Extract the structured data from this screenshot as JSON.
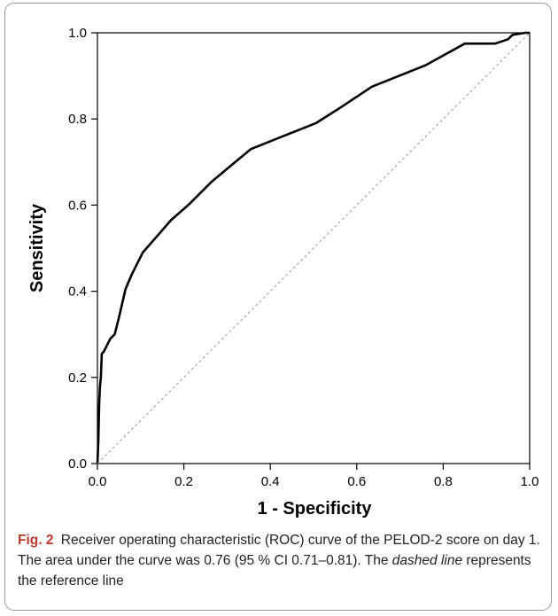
{
  "chart_data": {
    "type": "line",
    "xlabel": "1 - Specificity",
    "ylabel": "Sensitivity",
    "xlim": [
      0,
      1
    ],
    "ylim": [
      0,
      1
    ],
    "xticks": [
      "0.0",
      "0.2",
      "0.4",
      "0.6",
      "0.8",
      "1.0"
    ],
    "yticks": [
      "0.0",
      "0.2",
      "0.4",
      "0.6",
      "0.8",
      "1.0"
    ],
    "grid": false,
    "series": [
      {
        "style": "solid",
        "color": "#000000",
        "x": [
          0.0,
          0.002,
          0.004,
          0.006,
          0.008,
          0.01,
          0.015,
          0.03,
          0.04,
          0.05,
          0.065,
          0.08,
          0.105,
          0.14,
          0.17,
          0.21,
          0.265,
          0.355,
          0.43,
          0.505,
          0.56,
          0.635,
          0.76,
          0.85,
          0.92,
          0.95,
          0.96,
          0.99,
          1.0
        ],
        "y": [
          0.0,
          0.05,
          0.14,
          0.18,
          0.2,
          0.255,
          0.26,
          0.29,
          0.3,
          0.34,
          0.405,
          0.44,
          0.49,
          0.53,
          0.565,
          0.6,
          0.655,
          0.73,
          0.76,
          0.79,
          0.825,
          0.875,
          0.925,
          0.975,
          0.975,
          0.985,
          0.995,
          1.0,
          1.0
        ]
      },
      {
        "style": "dashed",
        "color": "#999999",
        "x": [
          0,
          1
        ],
        "y": [
          0,
          1
        ]
      }
    ]
  },
  "caption": {
    "fig_label": "Fig. 2",
    "text_before": "Receiver operating characteristic (ROC) curve of the PELOD-2 score on day 1. The area under the curve was 0.76 (95 % CI 0.71–0.81). The ",
    "emphasis": "dashed line",
    "text_after": " represents the reference line"
  }
}
